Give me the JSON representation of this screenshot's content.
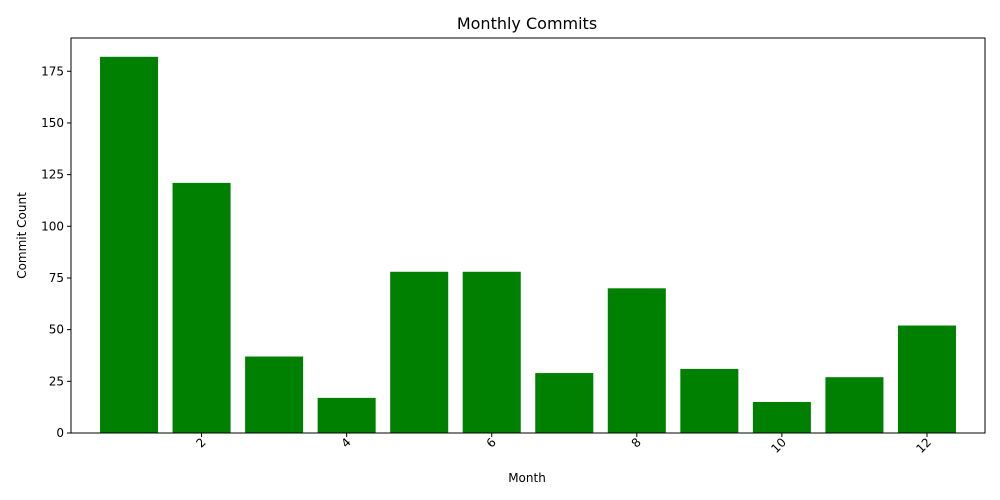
{
  "chart_data": {
    "type": "bar",
    "title": "Monthly Commits",
    "xlabel": "Month",
    "ylabel": "Commit Count",
    "x": [
      1,
      2,
      3,
      4,
      5,
      6,
      7,
      8,
      9,
      10,
      11,
      12
    ],
    "values": [
      182,
      121,
      37,
      17,
      78,
      78,
      29,
      70,
      31,
      15,
      27,
      52
    ],
    "xlim": [
      0.2,
      12.8
    ],
    "ylim": [
      0,
      191.1
    ],
    "xticks": [
      2,
      4,
      6,
      8,
      10,
      12
    ],
    "xtick_labels": [
      "2",
      "4",
      "6",
      "8",
      "10",
      "12"
    ],
    "xtick_rotation": 45,
    "yticks": [
      0,
      25,
      50,
      75,
      100,
      125,
      150,
      175
    ],
    "ytick_labels": [
      "0",
      "25",
      "50",
      "75",
      "100",
      "125",
      "150",
      "175"
    ],
    "bar_color": "#008000",
    "grid": false,
    "legend": false
  }
}
